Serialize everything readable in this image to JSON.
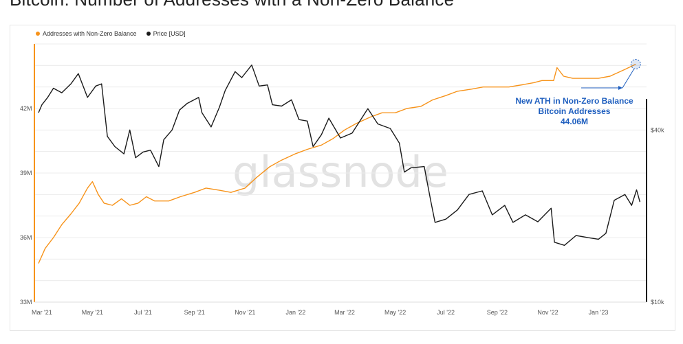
{
  "page": {
    "title": "Bitcoin: Number of Addresses with a Non-Zero Balance"
  },
  "watermark": "glassnode",
  "colors": {
    "addresses": "#f7931a",
    "price": "#1a1a1a",
    "annotation": "#1f5fbf",
    "grid": "#ececec"
  },
  "chart_data": {
    "type": "line",
    "legend": [
      {
        "name": "Addresses with Non-Zero Balance",
        "color": "#f7931a"
      },
      {
        "name": "Price [USD]",
        "color": "#1a1a1a"
      }
    ],
    "legend_position": "top-left",
    "x_ticks": [
      "Mar '21",
      "May '21",
      "Jul '21",
      "Sep '21",
      "Nov '21",
      "Jan '22",
      "Mar '22",
      "May '22",
      "Jul '22",
      "Sep '22",
      "Nov '22",
      "Jan '23"
    ],
    "x_range": [
      "2021-02-20",
      "2023-02-28"
    ],
    "y_left": {
      "range": [
        33,
        45
      ],
      "ticks": [
        33,
        36,
        39,
        42
      ],
      "tick_labels": [
        "33M",
        "36M",
        "39M",
        "42M"
      ]
    },
    "y_right": {
      "scale": "log",
      "range": [
        10000,
        80000
      ],
      "ticks": [
        10000,
        40000
      ],
      "tick_labels": [
        "$10k",
        "$40k"
      ]
    },
    "grid": true,
    "series": [
      {
        "name": "Addresses with Non-Zero Balance",
        "axis": "left",
        "points": [
          [
            "2021-02-25",
            34.8
          ],
          [
            "2021-03-05",
            35.5
          ],
          [
            "2021-03-15",
            36.0
          ],
          [
            "2021-03-25",
            36.6
          ],
          [
            "2021-04-05",
            37.1
          ],
          [
            "2021-04-15",
            37.6
          ],
          [
            "2021-04-25",
            38.3
          ],
          [
            "2021-05-01",
            38.6
          ],
          [
            "2021-05-08",
            38.0
          ],
          [
            "2021-05-15",
            37.6
          ],
          [
            "2021-05-25",
            37.5
          ],
          [
            "2021-06-05",
            37.8
          ],
          [
            "2021-06-15",
            37.5
          ],
          [
            "2021-06-25",
            37.6
          ],
          [
            "2021-07-05",
            37.9
          ],
          [
            "2021-07-15",
            37.7
          ],
          [
            "2021-08-01",
            37.7
          ],
          [
            "2021-08-15",
            37.9
          ],
          [
            "2021-09-01",
            38.1
          ],
          [
            "2021-09-15",
            38.3
          ],
          [
            "2021-10-01",
            38.2
          ],
          [
            "2021-10-15",
            38.1
          ],
          [
            "2021-11-01",
            38.3
          ],
          [
            "2021-11-15",
            38.8
          ],
          [
            "2021-12-01",
            39.3
          ],
          [
            "2021-12-15",
            39.6
          ],
          [
            "2022-01-01",
            39.9
          ],
          [
            "2022-01-15",
            40.1
          ],
          [
            "2022-02-01",
            40.3
          ],
          [
            "2022-02-15",
            40.6
          ],
          [
            "2022-03-01",
            41.0
          ],
          [
            "2022-03-15",
            41.3
          ],
          [
            "2022-04-01",
            41.6
          ],
          [
            "2022-04-15",
            41.8
          ],
          [
            "2022-05-01",
            41.8
          ],
          [
            "2022-05-15",
            42.0
          ],
          [
            "2022-06-01",
            42.1
          ],
          [
            "2022-06-15",
            42.4
          ],
          [
            "2022-07-01",
            42.6
          ],
          [
            "2022-07-15",
            42.8
          ],
          [
            "2022-08-01",
            42.9
          ],
          [
            "2022-08-15",
            43.0
          ],
          [
            "2022-09-01",
            43.0
          ],
          [
            "2022-09-15",
            43.0
          ],
          [
            "2022-10-01",
            43.1
          ],
          [
            "2022-10-15",
            43.2
          ],
          [
            "2022-10-25",
            43.3
          ],
          [
            "2022-11-08",
            43.3
          ],
          [
            "2022-11-12",
            43.9
          ],
          [
            "2022-11-20",
            43.5
          ],
          [
            "2022-12-01",
            43.4
          ],
          [
            "2022-12-15",
            43.4
          ],
          [
            "2023-01-01",
            43.4
          ],
          [
            "2023-01-15",
            43.5
          ],
          [
            "2023-02-01",
            43.8
          ],
          [
            "2023-02-15",
            44.06
          ]
        ]
      },
      {
        "name": "Price [USD]",
        "axis": "right",
        "points": [
          [
            "2021-02-25",
            46000
          ],
          [
            "2021-03-01",
            49000
          ],
          [
            "2021-03-08",
            52000
          ],
          [
            "2021-03-15",
            56000
          ],
          [
            "2021-03-25",
            54000
          ],
          [
            "2021-04-05",
            58000
          ],
          [
            "2021-04-14",
            63000
          ],
          [
            "2021-04-25",
            52000
          ],
          [
            "2021-05-05",
            57000
          ],
          [
            "2021-05-12",
            58000
          ],
          [
            "2021-05-19",
            38000
          ],
          [
            "2021-05-28",
            35000
          ],
          [
            "2021-06-08",
            33000
          ],
          [
            "2021-06-15",
            40000
          ],
          [
            "2021-06-22",
            32000
          ],
          [
            "2021-07-01",
            33500
          ],
          [
            "2021-07-10",
            34000
          ],
          [
            "2021-07-20",
            29800
          ],
          [
            "2021-07-26",
            37000
          ],
          [
            "2021-08-05",
            40000
          ],
          [
            "2021-08-14",
            47000
          ],
          [
            "2021-08-23",
            49500
          ],
          [
            "2021-09-06",
            52000
          ],
          [
            "2021-09-10",
            46000
          ],
          [
            "2021-09-21",
            41000
          ],
          [
            "2021-10-01",
            48000
          ],
          [
            "2021-10-08",
            55000
          ],
          [
            "2021-10-20",
            64000
          ],
          [
            "2021-10-28",
            61000
          ],
          [
            "2021-11-09",
            67500
          ],
          [
            "2021-11-18",
            57000
          ],
          [
            "2021-11-28",
            57500
          ],
          [
            "2021-12-04",
            49000
          ],
          [
            "2021-12-15",
            48500
          ],
          [
            "2021-12-27",
            51000
          ],
          [
            "2022-01-05",
            43500
          ],
          [
            "2022-01-15",
            43000
          ],
          [
            "2022-01-22",
            35000
          ],
          [
            "2022-02-01",
            38500
          ],
          [
            "2022-02-10",
            44000
          ],
          [
            "2022-02-24",
            37500
          ],
          [
            "2022-03-10",
            39000
          ],
          [
            "2022-03-29",
            47500
          ],
          [
            "2022-04-10",
            42000
          ],
          [
            "2022-04-25",
            40500
          ],
          [
            "2022-05-06",
            36000
          ],
          [
            "2022-05-12",
            28500
          ],
          [
            "2022-05-20",
            29500
          ],
          [
            "2022-06-05",
            29800
          ],
          [
            "2022-06-13",
            22500
          ],
          [
            "2022-06-18",
            19000
          ],
          [
            "2022-07-01",
            19500
          ],
          [
            "2022-07-15",
            21000
          ],
          [
            "2022-07-29",
            23800
          ],
          [
            "2022-08-14",
            24500
          ],
          [
            "2022-08-26",
            20200
          ],
          [
            "2022-09-10",
            21800
          ],
          [
            "2022-09-20",
            19000
          ],
          [
            "2022-10-05",
            20200
          ],
          [
            "2022-10-20",
            19100
          ],
          [
            "2022-11-05",
            21300
          ],
          [
            "2022-11-09",
            16200
          ],
          [
            "2022-11-21",
            15800
          ],
          [
            "2022-12-05",
            17100
          ],
          [
            "2022-12-20",
            16800
          ],
          [
            "2023-01-01",
            16600
          ],
          [
            "2023-01-10",
            17400
          ],
          [
            "2023-01-20",
            22700
          ],
          [
            "2023-02-02",
            23800
          ],
          [
            "2023-02-10",
            21800
          ],
          [
            "2023-02-16",
            24700
          ],
          [
            "2023-02-20",
            22400
          ]
        ]
      }
    ],
    "annotation": {
      "lines": [
        "New ATH in Non-Zero Balance",
        "Bitcoin Addresses",
        "44.06M"
      ],
      "target_date": "2023-02-15",
      "target_value": 44.06
    }
  }
}
